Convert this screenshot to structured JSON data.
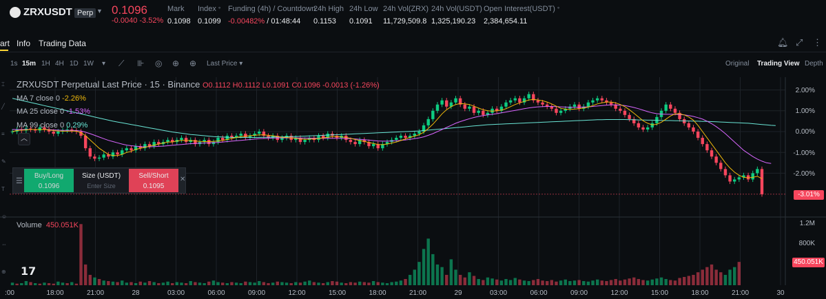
{
  "header": {
    "symbol": "ZRXUSDT",
    "badge": "Perp",
    "last_price": "0.1096",
    "change": "-0.0040 -3.52%",
    "stats": [
      {
        "label": "Mark",
        "value": "0.1098"
      },
      {
        "label": "Index",
        "value": "0.1099"
      },
      {
        "label": "Funding (4h) / Countdown",
        "value": "-0.00482%",
        "value2": " / 01:48:44"
      },
      {
        "label": "24h High",
        "value": "0.1153"
      },
      {
        "label": "24h Low",
        "value": "0.1091"
      },
      {
        "label": "24h Vol(ZRX)",
        "value": "11,729,509.8"
      },
      {
        "label": "24h Vol(USDT)",
        "value": "1,325,190.23"
      },
      {
        "label": "Open Interest(USDT)",
        "value": "2,384,654.11"
      }
    ]
  },
  "tabs": {
    "chart": "art",
    "info": "Info",
    "trading_data": "Trading Data"
  },
  "toolbar": {
    "intervals": [
      "1s",
      "15m",
      "1H",
      "4H",
      "1D",
      "1W"
    ],
    "active_interval": "15m",
    "price_type": "Last Price",
    "views": [
      "Original",
      "Trading View",
      "Depth"
    ],
    "active_view": "Trading View"
  },
  "chart_legend": {
    "title": "ZRXUSDT Perpetual Last Price · 15 · Binance",
    "ohlc": "O0.1112 H0.1112 L0.1091 C0.1096 -0.0013 (-1.26%)",
    "ma7_label": "MA 7 close 0",
    "ma7_value": "-2.26%",
    "ma25_label": "MA 25 close 0",
    "ma25_value": "-1.53%",
    "ma99_label": "MA 99 close 0",
    "ma99_value": "0.29%"
  },
  "order_panel": {
    "buy_label": "Buy/Long",
    "buy_price": "0.1096",
    "size_label": "Size (USDT)",
    "size_placeholder": "Enter Size",
    "sell_label": "Sell/Short",
    "sell_price": "0.1095"
  },
  "price_axis": {
    "labels": [
      "2.00%",
      "1.00%",
      "0.00%",
      "-1.00%",
      "-2.00%"
    ],
    "current_tag": "-3.01%"
  },
  "volume": {
    "label": "Volume",
    "value": "450.051K",
    "axis_labels": [
      "1.2M",
      "800K"
    ],
    "current_tag": "450.051K"
  },
  "time_axis": [
    "18:00",
    "21:00",
    "28",
    "03:00",
    "06:00",
    "09:00",
    "12:00",
    "15:00",
    "18:00",
    "21:00",
    "29",
    "03:00",
    "06:00",
    "09:00",
    "12:00",
    "15:00",
    "18:00",
    "21:00",
    "30"
  ],
  "time_axis_left_partial": ":00",
  "colors": {
    "up": "#0ecb81",
    "down": "#f6465d",
    "ma7": "#f0b90b",
    "ma25": "#d966ff",
    "ma99": "#6ae6d6",
    "background": "#0b0e11"
  },
  "chart_data": {
    "type": "candlestick",
    "y_unit": "percent change",
    "ylim": [
      -3.5,
      2.3
    ],
    "close_pct": [
      0.0,
      0.1,
      0.05,
      0.15,
      0.1,
      0.05,
      0.2,
      0.1,
      0.0,
      -0.1,
      0.0,
      0.05,
      0.1,
      0.05,
      0.0,
      -0.2,
      -0.8,
      -1.2,
      -1.3,
      -1.25,
      -1.1,
      -1.2,
      -1.0,
      -1.1,
      -0.9,
      -0.8,
      -0.9,
      -0.7,
      -0.8,
      -0.6,
      -0.7,
      -0.5,
      -0.6,
      -0.5,
      -0.4,
      -0.5,
      -0.4,
      -0.3,
      -0.5,
      -0.4,
      -0.6,
      -0.5,
      -0.4,
      -0.6,
      -0.5,
      -0.3,
      -0.4,
      -0.2,
      -0.3,
      -0.2,
      -0.1,
      -0.3,
      -0.2,
      -0.1,
      0.0,
      -0.2,
      -0.3,
      -0.2,
      -0.4,
      -0.3,
      -0.2,
      -0.4,
      -0.3,
      -0.5,
      -0.4,
      -0.3,
      -0.4,
      -0.2,
      -0.3,
      -0.1,
      -0.2,
      -0.3,
      -0.2,
      -0.4,
      -0.5,
      -0.6,
      -0.4,
      -0.5,
      -0.7,
      -0.6,
      -0.8,
      -0.6,
      -0.5,
      -0.4,
      -0.3,
      -0.2,
      -0.3,
      -0.2,
      -0.1,
      0.0,
      0.3,
      0.6,
      1.0,
      1.3,
      1.5,
      1.2,
      1.4,
      1.6,
      1.3,
      1.1,
      1.2,
      0.9,
      1.0,
      0.8,
      0.9,
      1.1,
      1.0,
      1.2,
      1.4,
      1.5,
      1.6,
      1.4,
      1.6,
      1.8,
      1.5,
      1.4,
      1.3,
      1.2,
      1.1,
      0.9,
      1.0,
      1.1,
      1.2,
      1.3,
      1.1,
      1.2,
      1.4,
      1.5,
      1.6,
      1.5,
      1.4,
      1.3,
      1.1,
      1.0,
      0.8,
      0.6,
      0.4,
      0.2,
      0.1,
      0.2,
      0.4,
      0.7,
      1.0,
      1.3,
      1.1,
      0.9,
      0.6,
      0.4,
      0.2,
      0.0,
      -0.3,
      -0.6,
      -0.9,
      -1.2,
      -1.5,
      -1.8,
      -2.1,
      -2.4,
      -2.3,
      -2.2,
      -2.1,
      -2.3,
      -2.0,
      -1.8,
      -3.01
    ],
    "ma7_pct": [
      0.0,
      0.05,
      0.07,
      0.08,
      0.1,
      0.1,
      0.1,
      0.1,
      0.08,
      0.05,
      0.03,
      0.02,
      0.02,
      0.03,
      0.02,
      -0.05,
      -0.2,
      -0.4,
      -0.6,
      -0.8,
      -0.95,
      -1.1,
      -1.15,
      -1.15,
      -1.1,
      -1.0,
      -0.95,
      -0.85,
      -0.8,
      -0.75,
      -0.7,
      -0.65,
      -0.6,
      -0.55,
      -0.5,
      -0.5,
      -0.45,
      -0.42,
      -0.42,
      -0.43,
      -0.45,
      -0.47,
      -0.48,
      -0.48,
      -0.47,
      -0.45,
      -0.42,
      -0.38,
      -0.33,
      -0.28,
      -0.24,
      -0.22,
      -0.2,
      -0.18,
      -0.16,
      -0.16,
      -0.18,
      -0.2,
      -0.24,
      -0.27,
      -0.28,
      -0.3,
      -0.32,
      -0.35,
      -0.37,
      -0.36,
      -0.35,
      -0.33,
      -0.3,
      -0.27,
      -0.24,
      -0.24,
      -0.25,
      -0.28,
      -0.32,
      -0.38,
      -0.43,
      -0.47,
      -0.52,
      -0.57,
      -0.62,
      -0.63,
      -0.6,
      -0.55,
      -0.5,
      -0.43,
      -0.35,
      -0.28,
      -0.22,
      -0.15,
      -0.03,
      0.15,
      0.35,
      0.6,
      0.85,
      1.05,
      1.2,
      1.3,
      1.35,
      1.33,
      1.3,
      1.22,
      1.13,
      1.05,
      1.0,
      0.98,
      1.0,
      1.03,
      1.1,
      1.2,
      1.3,
      1.38,
      1.45,
      1.52,
      1.55,
      1.52,
      1.48,
      1.42,
      1.33,
      1.22,
      1.12,
      1.08,
      1.07,
      1.08,
      1.1,
      1.13,
      1.18,
      1.25,
      1.33,
      1.38,
      1.42,
      1.42,
      1.38,
      1.3,
      1.2,
      1.05,
      0.88,
      0.7,
      0.52,
      0.4,
      0.32,
      0.35,
      0.45,
      0.6,
      0.75,
      0.85,
      0.85,
      0.8,
      0.7,
      0.55,
      0.3,
      0.0,
      -0.3,
      -0.6,
      -0.9,
      -1.2,
      -1.5,
      -1.75,
      -1.95,
      -2.1,
      -2.2,
      -2.22,
      -2.2,
      -2.15,
      -2.26
    ],
    "ma25_pct": [
      0.1,
      0.1,
      0.1,
      0.1,
      0.1,
      0.1,
      0.1,
      0.1,
      0.1,
      0.08,
      0.07,
      0.06,
      0.06,
      0.06,
      0.05,
      0.03,
      -0.03,
      -0.1,
      -0.18,
      -0.26,
      -0.34,
      -0.42,
      -0.48,
      -0.54,
      -0.6,
      -0.65,
      -0.68,
      -0.7,
      -0.72,
      -0.73,
      -0.73,
      -0.72,
      -0.71,
      -0.7,
      -0.68,
      -0.66,
      -0.64,
      -0.62,
      -0.6,
      -0.58,
      -0.57,
      -0.56,
      -0.55,
      -0.54,
      -0.53,
      -0.52,
      -0.5,
      -0.48,
      -0.46,
      -0.44,
      -0.42,
      -0.4,
      -0.38,
      -0.36,
      -0.34,
      -0.33,
      -0.32,
      -0.31,
      -0.3,
      -0.3,
      -0.3,
      -0.3,
      -0.3,
      -0.31,
      -0.31,
      -0.31,
      -0.32,
      -0.32,
      -0.32,
      -0.32,
      -0.32,
      -0.32,
      -0.32,
      -0.33,
      -0.34,
      -0.35,
      -0.37,
      -0.39,
      -0.41,
      -0.43,
      -0.45,
      -0.46,
      -0.46,
      -0.45,
      -0.44,
      -0.42,
      -0.4,
      -0.37,
      -0.34,
      -0.3,
      -0.25,
      -0.18,
      -0.1,
      0.0,
      0.1,
      0.2,
      0.3,
      0.4,
      0.48,
      0.55,
      0.62,
      0.68,
      0.73,
      0.77,
      0.8,
      0.83,
      0.86,
      0.9,
      0.94,
      0.98,
      1.02,
      1.06,
      1.1,
      1.14,
      1.17,
      1.19,
      1.2,
      1.21,
      1.21,
      1.2,
      1.19,
      1.18,
      1.17,
      1.17,
      1.17,
      1.18,
      1.19,
      1.21,
      1.23,
      1.25,
      1.27,
      1.28,
      1.28,
      1.27,
      1.25,
      1.21,
      1.16,
      1.1,
      1.03,
      0.96,
      0.9,
      0.86,
      0.84,
      0.83,
      0.83,
      0.83,
      0.82,
      0.8,
      0.77,
      0.73,
      0.67,
      0.6,
      0.5,
      0.38,
      0.24,
      0.08,
      -0.1,
      -0.3,
      -0.5,
      -0.7,
      -0.9,
      -1.05,
      -1.2,
      -1.32,
      -1.42,
      -1.5,
      -1.53
    ],
    "ma99_pct": [
      1.6,
      1.55,
      1.5,
      1.45,
      1.4,
      1.35,
      1.3,
      1.25,
      1.2,
      1.15,
      1.1,
      1.05,
      1.0,
      0.95,
      0.9,
      0.85,
      0.8,
      0.75,
      0.7,
      0.65,
      0.6,
      0.55,
      0.5,
      0.46,
      0.42,
      0.38,
      0.34,
      0.3,
      0.26,
      0.22,
      0.18,
      0.14,
      0.1,
      0.06,
      0.02,
      -0.02,
      -0.05,
      -0.08,
      -0.11,
      -0.14,
      -0.16,
      -0.18,
      -0.2,
      -0.22,
      -0.24,
      -0.25,
      -0.26,
      -0.27,
      -0.28,
      -0.28,
      -0.28,
      -0.28,
      -0.28,
      -0.28,
      -0.28,
      -0.27,
      -0.27,
      -0.26,
      -0.26,
      -0.25,
      -0.25,
      -0.24,
      -0.24,
      -0.23,
      -0.22,
      -0.21,
      -0.2,
      -0.19,
      -0.18,
      -0.17,
      -0.16,
      -0.15,
      -0.14,
      -0.13,
      -0.12,
      -0.11,
      -0.1,
      -0.09,
      -0.08,
      -0.07,
      -0.06,
      -0.05,
      -0.04,
      -0.03,
      -0.02,
      -0.01,
      0.0,
      0.01,
      0.02,
      0.03,
      0.05,
      0.07,
      0.09,
      0.11,
      0.13,
      0.15,
      0.17,
      0.19,
      0.21,
      0.23,
      0.25,
      0.27,
      0.29,
      0.31,
      0.33,
      0.34,
      0.35,
      0.36,
      0.37,
      0.38,
      0.39,
      0.4,
      0.41,
      0.42,
      0.43,
      0.44,
      0.45,
      0.46,
      0.47,
      0.48,
      0.49,
      0.5,
      0.51,
      0.52,
      0.53,
      0.54,
      0.55,
      0.56,
      0.57,
      0.57,
      0.58,
      0.58,
      0.58,
      0.58,
      0.58,
      0.57,
      0.57,
      0.56,
      0.56,
      0.55,
      0.55,
      0.54,
      0.54,
      0.53,
      0.53,
      0.52,
      0.52,
      0.51,
      0.51,
      0.5,
      0.5,
      0.49,
      0.49,
      0.48,
      0.47,
      0.46,
      0.45,
      0.44,
      0.43,
      0.42,
      0.41,
      0.4,
      0.38,
      0.36,
      0.34,
      0.32,
      0.3,
      0.29
    ],
    "volume_k": [
      50,
      30,
      40,
      80,
      60,
      40,
      30,
      50,
      40,
      30,
      70,
      50,
      40,
      60,
      30,
      1180,
      400,
      200,
      150,
      120,
      90,
      80,
      70,
      60,
      90,
      50,
      60,
      40,
      70,
      50,
      80,
      60,
      40,
      50,
      70,
      40,
      60,
      50,
      40,
      80,
      60,
      50,
      40,
      70,
      90,
      60,
      50,
      40,
      60,
      50,
      40,
      70,
      60,
      50,
      80,
      60,
      40,
      50,
      70,
      60,
      50,
      40,
      60,
      50,
      70,
      90,
      60,
      50,
      40,
      60,
      80,
      70,
      50,
      40,
      60,
      50,
      70,
      60,
      50,
      80,
      60,
      50,
      40,
      60,
      70,
      90,
      120,
      200,
      300,
      450,
      700,
      900,
      600,
      400,
      350,
      200,
      500,
      300,
      200,
      150,
      250,
      180,
      120,
      100,
      150,
      130,
      110,
      90,
      120,
      100,
      140,
      110,
      90,
      80,
      100,
      120,
      90,
      80,
      100,
      70,
      90,
      110,
      80,
      90,
      100,
      80,
      70,
      90,
      110,
      90,
      80,
      100,
      120,
      90,
      110,
      130,
      150,
      120,
      100,
      90,
      110,
      130,
      150,
      120,
      100,
      90,
      140,
      160,
      180,
      200,
      250,
      300,
      350,
      400,
      300,
      250,
      200,
      300,
      350,
      450
    ],
    "volume_up": [
      1,
      0,
      1,
      1,
      0,
      1,
      0,
      1,
      0,
      0,
      1,
      1,
      0,
      1,
      0,
      0,
      0,
      0,
      1,
      0,
      1,
      0,
      1,
      0,
      1,
      1,
      0,
      1,
      0,
      1,
      0,
      1,
      0,
      1,
      1,
      0,
      1,
      1,
      0,
      1,
      0,
      1,
      1,
      0,
      1,
      1,
      0,
      1,
      0,
      1,
      1,
      0,
      1,
      1,
      1,
      0,
      0,
      1,
      0,
      1,
      1,
      0,
      1,
      0,
      1,
      1,
      0,
      1,
      0,
      1,
      0,
      0,
      1,
      0,
      0,
      0,
      1,
      0,
      0,
      1,
      0,
      1,
      1,
      1,
      1,
      1,
      0,
      1,
      1,
      1,
      1,
      1,
      1,
      1,
      1,
      0,
      1,
      1,
      0,
      0,
      1,
      0,
      1,
      0,
      1,
      1,
      0,
      1,
      1,
      1,
      1,
      0,
      1,
      1,
      0,
      0,
      0,
      0,
      0,
      0,
      1,
      1,
      1,
      1,
      0,
      1,
      1,
      1,
      1,
      0,
      0,
      0,
      0,
      0,
      0,
      0,
      0,
      0,
      0,
      1,
      1,
      1,
      1,
      1,
      0,
      0,
      0,
      0,
      0,
      0,
      0,
      0,
      0,
      0,
      0,
      0,
      1,
      1,
      1,
      0,
      1,
      1,
      0
    ]
  }
}
